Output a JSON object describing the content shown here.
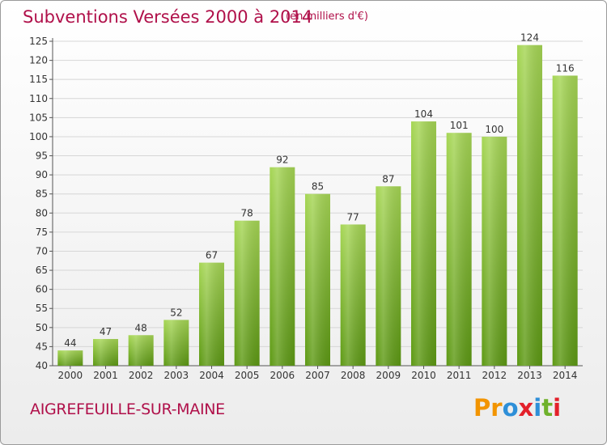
{
  "chart_data": {
    "type": "bar",
    "title": "Subventions Versées 2000 à 2014",
    "subtitle": "(en milliers d'€)",
    "categories": [
      "2000",
      "2001",
      "2002",
      "2003",
      "2004",
      "2005",
      "2006",
      "2007",
      "2008",
      "2009",
      "2010",
      "2011",
      "2012",
      "2013",
      "2014"
    ],
    "values": [
      44,
      47,
      48,
      52,
      67,
      78,
      92,
      85,
      77,
      87,
      104,
      101,
      100,
      124,
      116
    ],
    "ylim": [
      40,
      125
    ],
    "yticks": [
      40,
      45,
      50,
      55,
      60,
      65,
      70,
      75,
      80,
      85,
      90,
      95,
      100,
      105,
      110,
      115,
      120,
      125
    ],
    "grid": true,
    "xlabel": "",
    "ylabel": ""
  },
  "footer": {
    "commune": "AIGREFEUILLE-SUR-MAINE",
    "brand_letters": [
      "P",
      "r",
      "o",
      "x",
      "i",
      "t",
      "i"
    ]
  },
  "colors": {
    "accent": "#b0104a",
    "bar_light": "#a2d24f",
    "bar_dark": "#5e9a14",
    "grid": "#d6d6d6",
    "brand": [
      "#f29400",
      "#f29400",
      "#2e8fd8",
      "#e3202a",
      "#2e8fd8",
      "#6fb12b",
      "#e3202a"
    ]
  }
}
